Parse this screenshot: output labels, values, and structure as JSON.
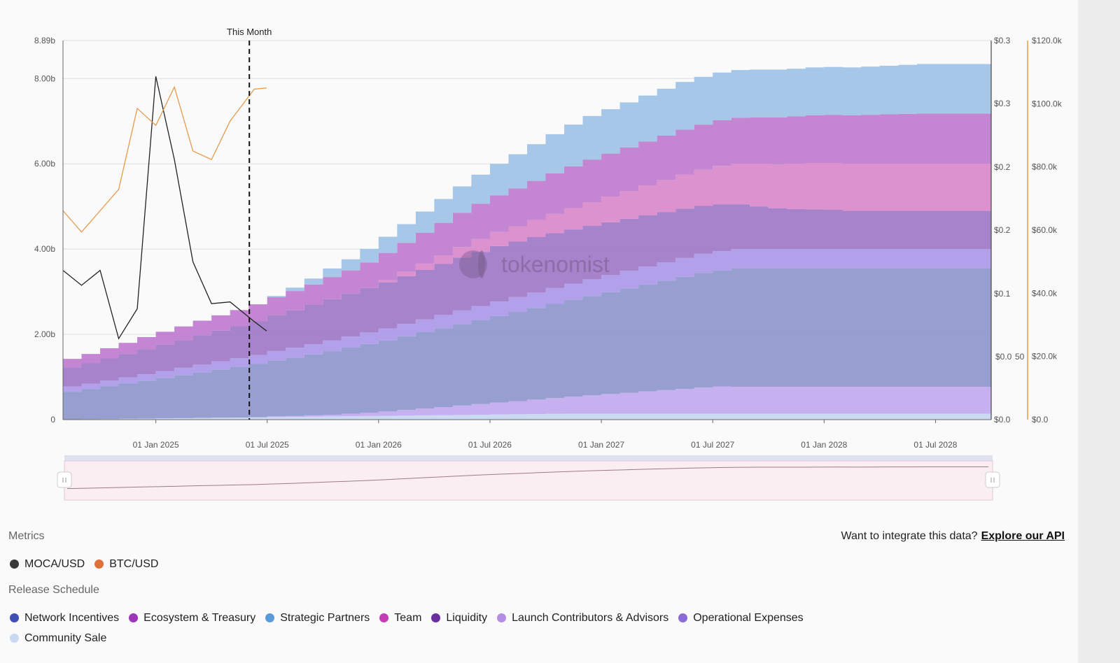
{
  "chart_data": {
    "type": "area",
    "stacked": true,
    "x_ticks": [
      "01 Jan 2025",
      "01 Jul 2025",
      "01 Jan 2026",
      "01 Jul 2026",
      "01 Jan 2027",
      "01 Jul 2027",
      "01 Jan 2028",
      "01 Jul 2028"
    ],
    "x_range": [
      "2024-08",
      "2028-09"
    ],
    "y_left": {
      "ticks": [
        "0",
        "2.00b",
        "4.00b",
        "6.00b",
        "8.00b",
        "8.89b"
      ],
      "range": [
        0,
        8.89
      ],
      "unit": "b"
    },
    "y_right_price": {
      "ticks": [
        "$0.0",
        "$0.0",
        "$0.1",
        "$0.2",
        "$0.2",
        "$0.3",
        "$0.3"
      ],
      "overlap_label": "50"
    },
    "y_right_btc": {
      "ticks": [
        "$0.0",
        "$20.0k",
        "$40.0k",
        "$60.0k",
        "$80.0k",
        "$100.0k",
        "$120.0k"
      ],
      "range": [
        0,
        120
      ]
    },
    "marker": {
      "label": "This Month",
      "date": "2025-06"
    },
    "grid": true,
    "watermark": "tokenomist",
    "dates": [
      "2024-08",
      "2024-09",
      "2024-10",
      "2024-11",
      "2024-12",
      "2025-01",
      "2025-02",
      "2025-03",
      "2025-04",
      "2025-05",
      "2025-06",
      "2025-07",
      "2025-08",
      "2025-09",
      "2025-10",
      "2025-11",
      "2025-12",
      "2026-01",
      "2026-02",
      "2026-03",
      "2026-04",
      "2026-05",
      "2026-06",
      "2026-07",
      "2026-08",
      "2026-09",
      "2026-10",
      "2026-11",
      "2026-12",
      "2027-01",
      "2027-02",
      "2027-03",
      "2027-04",
      "2027-05",
      "2027-06",
      "2027-07",
      "2027-08",
      "2027-09",
      "2027-10",
      "2027-11",
      "2027-12",
      "2028-01",
      "2028-02",
      "2028-03",
      "2028-04",
      "2028-05",
      "2028-06",
      "2028-07",
      "2028-08",
      "2028-09"
    ],
    "release_series": [
      {
        "name": "Community Sale",
        "color": "#c7d7f2",
        "start": [
          2024,
          8
        ],
        "values": [
          0.005,
          0.01,
          0.015,
          0.02,
          0.025,
          0.03,
          0.035,
          0.04,
          0.045,
          0.05,
          0.055,
          0.06,
          0.065,
          0.07,
          0.075,
          0.08,
          0.085,
          0.09,
          0.095,
          0.1,
          0.105,
          0.11,
          0.115,
          0.12,
          0.125,
          0.13,
          0.135,
          0.14,
          0.14,
          0.14,
          0.14,
          0.14,
          0.14,
          0.14,
          0.14,
          0.14,
          0.14,
          0.14,
          0.14,
          0.14,
          0.14,
          0.14,
          0.14,
          0.14,
          0.14,
          0.14,
          0.14,
          0.14,
          0.14,
          0.14
        ]
      },
      {
        "name": "Launch Contributors & Advisors",
        "color": "#c2a9ee",
        "values": [
          0.0,
          0.0,
          0.0,
          0.0,
          0.0,
          0.0,
          0.0,
          0.0,
          0.0,
          0.0,
          0.0,
          0.02,
          0.02,
          0.03,
          0.04,
          0.06,
          0.08,
          0.1,
          0.13,
          0.16,
          0.19,
          0.22,
          0.25,
          0.28,
          0.31,
          0.34,
          0.37,
          0.4,
          0.43,
          0.46,
          0.49,
          0.52,
          0.55,
          0.58,
          0.61,
          0.64,
          0.63,
          0.63,
          0.63,
          0.63,
          0.63,
          0.63,
          0.63,
          0.63,
          0.63,
          0.63,
          0.63,
          0.63,
          0.63,
          0.63
        ]
      },
      {
        "name": "Network Incentives",
        "color": "#8e97cc",
        "values": [
          0.65,
          0.71,
          0.77,
          0.83,
          0.89,
          0.95,
          1.01,
          1.07,
          1.13,
          1.19,
          1.25,
          1.31,
          1.37,
          1.43,
          1.49,
          1.55,
          1.61,
          1.67,
          1.73,
          1.79,
          1.85,
          1.91,
          1.97,
          2.03,
          2.09,
          2.15,
          2.21,
          2.27,
          2.33,
          2.39,
          2.45,
          2.51,
          2.57,
          2.63,
          2.69,
          2.72,
          2.78,
          2.78,
          2.78,
          2.78,
          2.78,
          2.78,
          2.78,
          2.78,
          2.78,
          2.78,
          2.78,
          2.78,
          2.78,
          2.78
        ]
      },
      {
        "name": "Operational Expenses",
        "color": "#ab99e8",
        "values": [
          0.12,
          0.12,
          0.13,
          0.14,
          0.15,
          0.16,
          0.17,
          0.18,
          0.19,
          0.2,
          0.21,
          0.22,
          0.23,
          0.24,
          0.25,
          0.26,
          0.27,
          0.28,
          0.29,
          0.3,
          0.31,
          0.32,
          0.33,
          0.34,
          0.35,
          0.36,
          0.37,
          0.38,
          0.39,
          0.4,
          0.41,
          0.42,
          0.43,
          0.44,
          0.45,
          0.45,
          0.45,
          0.45,
          0.45,
          0.45,
          0.45,
          0.45,
          0.45,
          0.45,
          0.45,
          0.45,
          0.45,
          0.45,
          0.45,
          0.45
        ]
      },
      {
        "name": "Liquidity",
        "color": "#9e78c6",
        "values": [
          0.45,
          0.48,
          0.52,
          0.55,
          0.59,
          0.62,
          0.65,
          0.69,
          0.72,
          0.75,
          0.79,
          0.84,
          0.88,
          0.92,
          0.97,
          1.0,
          1.04,
          1.08,
          1.12,
          1.16,
          1.2,
          1.24,
          1.27,
          1.3,
          1.3,
          1.3,
          1.29,
          1.27,
          1.26,
          1.24,
          1.22,
          1.2,
          1.18,
          1.16,
          1.12,
          1.1,
          1.05,
          1.0,
          0.96,
          0.94,
          0.93,
          0.92,
          0.9,
          0.9,
          0.9,
          0.9,
          0.9,
          0.9,
          0.9,
          0.9
        ]
      },
      {
        "name": "Team",
        "color": "#d989cb",
        "values": [
          0.0,
          0.0,
          0.0,
          0.0,
          0.0,
          0.0,
          0.0,
          0.0,
          0.0,
          0.0,
          0.0,
          0.0,
          0.0,
          0.0,
          0.0,
          0.0,
          0.0,
          0.05,
          0.1,
          0.15,
          0.2,
          0.25,
          0.3,
          0.33,
          0.36,
          0.4,
          0.45,
          0.5,
          0.55,
          0.6,
          0.65,
          0.7,
          0.75,
          0.8,
          0.85,
          0.9,
          0.95,
          1.0,
          1.03,
          1.06,
          1.09,
          1.1,
          1.1,
          1.1,
          1.1,
          1.1,
          1.1,
          1.1,
          1.1,
          1.1
        ]
      },
      {
        "name": "Ecosystem & Treasury",
        "color": "#bf7bcf",
        "values": [
          0.2,
          0.22,
          0.24,
          0.26,
          0.28,
          0.3,
          0.32,
          0.34,
          0.36,
          0.38,
          0.4,
          0.42,
          0.45,
          0.48,
          0.52,
          0.55,
          0.6,
          0.64,
          0.68,
          0.72,
          0.76,
          0.8,
          0.83,
          0.86,
          0.89,
          0.92,
          0.95,
          0.98,
          1.0,
          1.01,
          1.02,
          1.03,
          1.04,
          1.05,
          1.06,
          1.07,
          1.08,
          1.09,
          1.1,
          1.11,
          1.12,
          1.13,
          1.14,
          1.15,
          1.16,
          1.17,
          1.18,
          1.18,
          1.18,
          1.18
        ]
      },
      {
        "name": "Strategic Partners",
        "color": "#9ec2e6",
        "values": [
          0.0,
          0.0,
          0.0,
          0.0,
          0.0,
          0.0,
          0.0,
          0.0,
          0.0,
          0.0,
          0.0,
          0.03,
          0.08,
          0.14,
          0.2,
          0.26,
          0.32,
          0.38,
          0.44,
          0.5,
          0.56,
          0.62,
          0.68,
          0.74,
          0.8,
          0.86,
          0.92,
          0.98,
          1.02,
          1.04,
          1.06,
          1.08,
          1.1,
          1.12,
          1.12,
          1.12,
          1.12,
          1.12,
          1.12,
          1.12,
          1.12,
          1.12,
          1.12,
          1.13,
          1.14,
          1.15,
          1.16,
          1.16,
          1.16,
          1.16
        ]
      }
    ],
    "price_series": [
      {
        "name": "MOCA/USD",
        "color": "#222222",
        "points": [
          [
            "2024-08",
            3.5
          ],
          [
            "2024-09",
            3.15
          ],
          [
            "2024-10",
            3.5
          ],
          [
            "2024-11",
            1.9
          ],
          [
            "2024-12",
            2.6
          ],
          [
            "2025-01",
            8.05
          ],
          [
            "2025-02",
            6.1
          ],
          [
            "2025-03",
            3.7
          ],
          [
            "2025-04",
            2.72
          ],
          [
            "2025-05",
            2.76
          ],
          [
            "2025-06-10",
            2.3
          ],
          [
            "2025-06-30",
            2.08
          ]
        ]
      },
      {
        "name": "BTC/USD",
        "color": "#e69a4c",
        "points": [
          [
            "2024-08",
            4.9
          ],
          [
            "2024-09",
            4.4
          ],
          [
            "2024-10",
            4.9
          ],
          [
            "2024-11",
            5.4
          ],
          [
            "2024-12",
            7.3
          ],
          [
            "2025-01",
            6.9
          ],
          [
            "2025-02",
            7.8
          ],
          [
            "2025-03",
            6.3
          ],
          [
            "2025-04",
            6.1
          ],
          [
            "2025-05",
            7.0
          ],
          [
            "2025-06-10",
            7.75
          ],
          [
            "2025-06-30",
            7.78
          ]
        ]
      }
    ]
  },
  "metrics": {
    "title": "Metrics",
    "items": [
      {
        "name": "MOCA/USD",
        "color": "#3a3a3a"
      },
      {
        "name": "BTC/USD",
        "color": "#e0703a"
      }
    ]
  },
  "release_schedule": {
    "title": "Release Schedule",
    "items": [
      {
        "name": "Network Incentives",
        "color": "#3f4fb3"
      },
      {
        "name": "Ecosystem & Treasury",
        "color": "#9d35b8"
      },
      {
        "name": "Strategic Partners",
        "color": "#5a9ad8"
      },
      {
        "name": "Team",
        "color": "#c43cb5"
      },
      {
        "name": "Liquidity",
        "color": "#6a2ea0"
      },
      {
        "name": "Launch Contributors & Advisors",
        "color": "#b38de6"
      },
      {
        "name": "Operational Expenses",
        "color": "#8a6ad8"
      },
      {
        "name": "Community Sale",
        "color": "#c9d9f3"
      }
    ]
  },
  "api": {
    "prompt": "Want to integrate this data?",
    "link": "Explore our API"
  }
}
